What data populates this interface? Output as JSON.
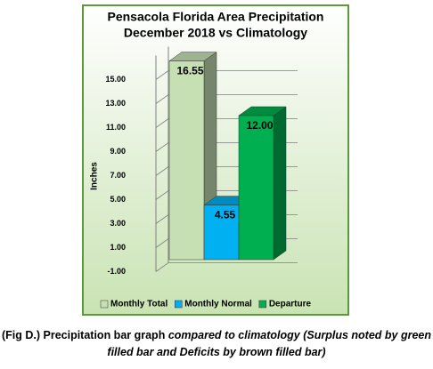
{
  "chart_data": {
    "type": "bar3d",
    "title": "Pensacola Florida Area Precipitation",
    "subtitle": "December 2018 vs Climatology",
    "ylabel": "Inches",
    "ylim": [
      -1,
      17
    ],
    "yticks": [
      {
        "value": -1,
        "label": "-1.00"
      },
      {
        "value": 1,
        "label": "1.00"
      },
      {
        "value": 3,
        "label": "3.00"
      },
      {
        "value": 5,
        "label": "5.00"
      },
      {
        "value": 7,
        "label": "7.00"
      },
      {
        "value": 9,
        "label": "9.00"
      },
      {
        "value": 11,
        "label": "11.00"
      },
      {
        "value": 13,
        "label": "13.00"
      },
      {
        "value": 15,
        "label": "15.00"
      }
    ],
    "grid": true,
    "legend": "bottom",
    "series": [
      {
        "name": "Monthly Total",
        "color": "#c6e0b4",
        "values": [
          16.55
        ],
        "value_labels": [
          "16.55"
        ]
      },
      {
        "name": "Monthly Normal",
        "color": "#00b0f0",
        "values": [
          4.55
        ],
        "value_labels": [
          "4.55"
        ]
      },
      {
        "name": "Departure",
        "color": "#00b050",
        "values": [
          12
        ],
        "value_labels": [
          "12.00"
        ]
      }
    ]
  },
  "caption": {
    "plain": "(Fig D.) Precipitation bar graph ",
    "italic": "compared to climatology (Surplus noted by green filled bar and Deficits by brown filled bar)"
  }
}
